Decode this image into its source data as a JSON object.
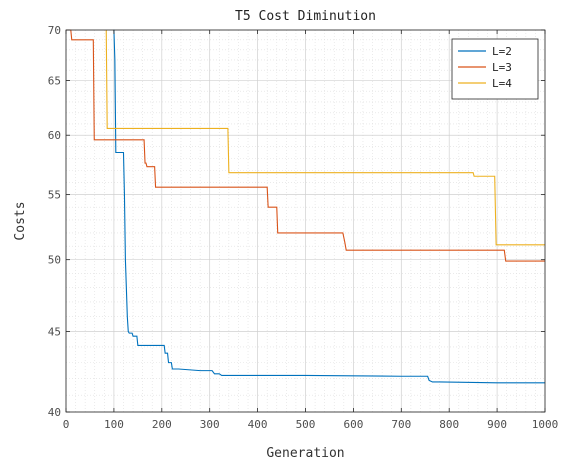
{
  "chart_data": {
    "type": "line",
    "title": "T5 Cost Diminution",
    "xlabel": "Generation",
    "ylabel": "Costs",
    "xlim": [
      0,
      1000
    ],
    "ylim": [
      40,
      70
    ],
    "y_scale": "log",
    "grid": true,
    "minor_grid": true,
    "legend_position": "top-right",
    "x_ticks": [
      0,
      100,
      200,
      300,
      400,
      500,
      600,
      700,
      800,
      900,
      1000
    ],
    "y_ticks": [
      40,
      45,
      50,
      55,
      60,
      65,
      70
    ],
    "series": [
      {
        "name": "L=2",
        "color": "#0072bd",
        "points": [
          [
            99,
            70
          ],
          [
            100,
            70
          ],
          [
            102,
            67
          ],
          [
            104,
            58.5
          ],
          [
            120,
            58.5
          ],
          [
            122,
            55
          ],
          [
            124,
            50
          ],
          [
            126,
            48
          ],
          [
            128,
            46
          ],
          [
            130,
            45
          ],
          [
            132,
            44.9
          ],
          [
            138,
            44.9
          ],
          [
            140,
            44.7
          ],
          [
            148,
            44.7
          ],
          [
            150,
            44.1
          ],
          [
            195,
            44.1
          ],
          [
            205,
            44.1
          ],
          [
            207,
            43.6
          ],
          [
            212,
            43.6
          ],
          [
            214,
            43.0
          ],
          [
            220,
            43.0
          ],
          [
            222,
            42.6
          ],
          [
            235,
            42.6
          ],
          [
            280,
            42.5
          ],
          [
            305,
            42.5
          ],
          [
            310,
            42.3
          ],
          [
            320,
            42.3
          ],
          [
            325,
            42.2
          ],
          [
            500,
            42.2
          ],
          [
            700,
            42.15
          ],
          [
            755,
            42.15
          ],
          [
            758,
            41.9
          ],
          [
            765,
            41.8
          ],
          [
            780,
            41.8
          ],
          [
            900,
            41.75
          ],
          [
            1000,
            41.75
          ]
        ]
      },
      {
        "name": "L=3",
        "color": "#d95319",
        "points": [
          [
            0,
            70
          ],
          [
            10,
            70
          ],
          [
            12,
            69
          ],
          [
            57,
            69
          ],
          [
            59,
            59.6
          ],
          [
            163,
            59.6
          ],
          [
            165,
            57.6
          ],
          [
            167,
            57.6
          ],
          [
            169,
            57.3
          ],
          [
            185,
            57.3
          ],
          [
            187,
            55.6
          ],
          [
            420,
            55.6
          ],
          [
            422,
            54.0
          ],
          [
            440,
            54.0
          ],
          [
            442,
            52.0
          ],
          [
            578,
            52.0
          ],
          [
            582,
            51.3
          ],
          [
            585,
            50.7
          ],
          [
            915,
            50.7
          ],
          [
            918,
            49.9
          ],
          [
            1000,
            49.9
          ]
        ]
      },
      {
        "name": "L=4",
        "color": "#edb120",
        "points": [
          [
            84,
            70
          ],
          [
            86,
            60.6
          ],
          [
            338,
            60.6
          ],
          [
            340,
            56.8
          ],
          [
            850,
            56.8
          ],
          [
            852,
            56.5
          ],
          [
            895,
            56.5
          ],
          [
            898,
            51.1
          ],
          [
            1000,
            51.1
          ]
        ]
      }
    ]
  }
}
